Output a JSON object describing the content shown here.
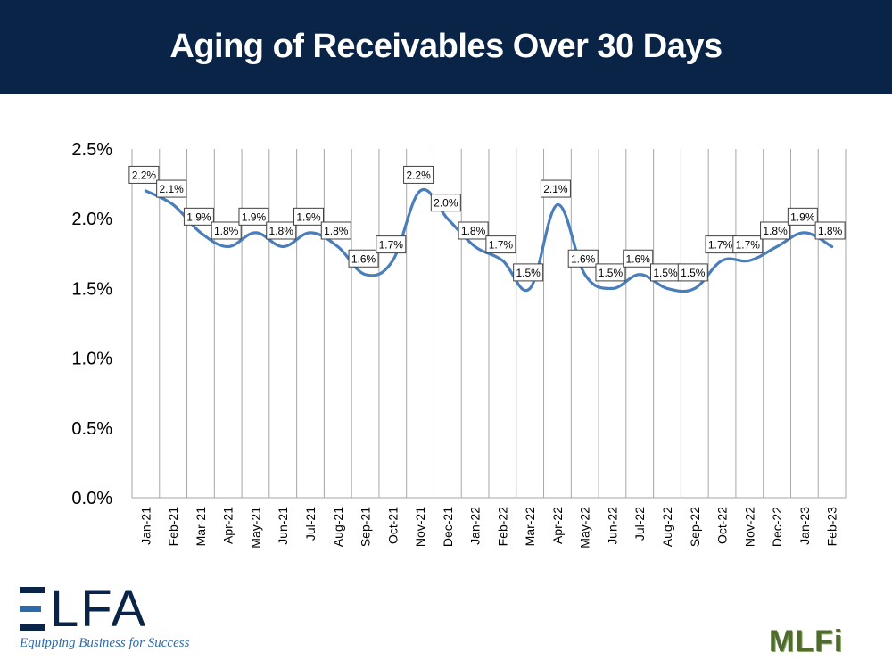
{
  "header": {
    "title": "Aging of Receivables Over 30 Days"
  },
  "chart_data": {
    "type": "line",
    "title": "Aging of Receivables Over 30 Days",
    "xlabel": "",
    "ylabel": "",
    "ylim": [
      0,
      2.5
    ],
    "yticks": [
      0,
      0.5,
      1.0,
      1.5,
      2.0,
      2.5
    ],
    "ytick_labels": [
      "0.0%",
      "0.5%",
      "1.0%",
      "1.5%",
      "2.0%",
      "2.5%"
    ],
    "grid": "vertical",
    "legend": "none",
    "categories": [
      "Jan-21",
      "Feb-21",
      "Mar-21",
      "Apr-21",
      "May-21",
      "Jun-21",
      "Jul-21",
      "Aug-21",
      "Sep-21",
      "Oct-21",
      "Nov-21",
      "Dec-21",
      "Jan-22",
      "Feb-22",
      "Mar-22",
      "Apr-22",
      "May-22",
      "Jun-22",
      "Jul-22",
      "Aug-22",
      "Sep-22",
      "Oct-22",
      "Nov-22",
      "Dec-22",
      "Jan-23",
      "Feb-23"
    ],
    "series": [
      {
        "name": "Aging of Receivables Over 30 Days",
        "color": "#4a7ebb",
        "values": [
          2.2,
          2.1,
          1.9,
          1.8,
          1.9,
          1.8,
          1.9,
          1.8,
          1.6,
          1.7,
          2.2,
          2.0,
          1.8,
          1.7,
          1.5,
          2.1,
          1.6,
          1.5,
          1.6,
          1.5,
          1.5,
          1.7,
          1.7,
          1.8,
          1.9,
          1.8
        ],
        "labels": [
          "2.2%",
          "2.1%",
          "1.9%",
          "1.8%",
          "1.9%",
          "1.8%",
          "1.9%",
          "1.8%",
          "1.6%",
          "1.7%",
          "2.2%",
          "2.0%",
          "1.8%",
          "1.7%",
          "1.5%",
          "2.1%",
          "1.6%",
          "1.5%",
          "1.6%",
          "1.5%",
          "1.5%",
          "1.7%",
          "1.7%",
          "1.8%",
          "1.9%",
          "1.8%"
        ]
      }
    ]
  },
  "logos": {
    "elfa_word": "LFA",
    "elfa_tagline": "Equipping Business for Success",
    "mlfi_text": "MLFi"
  }
}
